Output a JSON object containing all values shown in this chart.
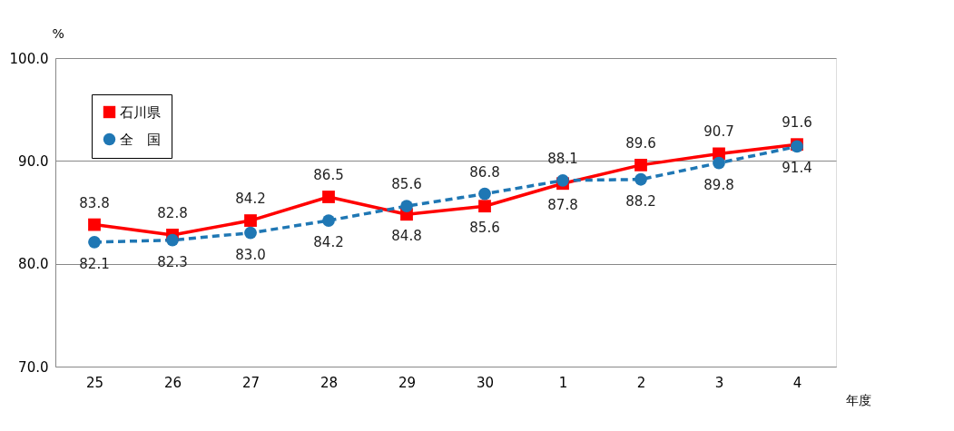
{
  "chart_data": {
    "type": "line",
    "categories": [
      "25",
      "26",
      "27",
      "28",
      "29",
      "30",
      "1",
      "2",
      "3",
      "4"
    ],
    "series": [
      {
        "name": "石川県",
        "color": "#ff0000",
        "marker": "square",
        "line_style": "solid",
        "values": [
          83.8,
          82.8,
          84.2,
          86.5,
          84.8,
          85.6,
          87.8,
          89.6,
          90.7,
          91.6
        ],
        "value_labels": [
          "83.8",
          "82.8",
          "84.2",
          "86.5",
          "84.8",
          "85.6",
          "87.8",
          "89.6",
          "90.7",
          "91.6"
        ]
      },
      {
        "name": "全　国",
        "color": "#1f77b4",
        "marker": "circle",
        "line_style": "dashed",
        "values": [
          82.1,
          82.3,
          83.0,
          84.2,
          85.6,
          86.8,
          88.1,
          88.2,
          89.8,
          91.4
        ],
        "value_labels": [
          "82.1",
          "82.3",
          "83.0",
          "84.2",
          "85.6",
          "86.8",
          "88.1",
          "88.2",
          "89.8",
          "91.4"
        ]
      }
    ],
    "ylabel": "%",
    "xlabel": "年度",
    "ylim": [
      70,
      100
    ],
    "yticks": [
      {
        "value": 70,
        "label": "70.0"
      },
      {
        "value": 80,
        "label": "80.0"
      },
      {
        "value": 90,
        "label": "90.0"
      },
      {
        "value": 100,
        "label": "100.0"
      }
    ],
    "grid": "y",
    "legend": "top left"
  }
}
